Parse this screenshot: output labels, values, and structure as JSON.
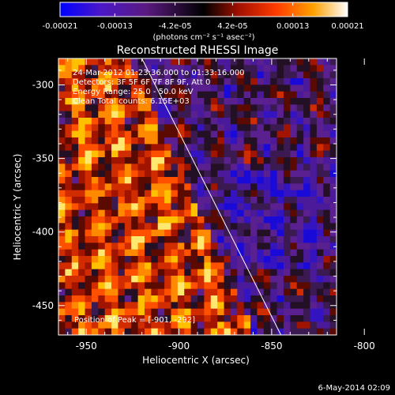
{
  "colorbar": {
    "ticks": [
      "-0.00021",
      "-0.00013",
      "-4.2e-05",
      "4.2e-05",
      "0.00013",
      "0.00021"
    ],
    "tick_values": [
      -0.00021,
      -0.00013,
      -4.2e-05,
      4.2e-05,
      0.00013,
      0.00021
    ],
    "range": [
      -0.00021,
      0.00021
    ],
    "unit_label": "(photons cm⁻² s⁻¹ asec⁻²)",
    "colors": [
      "#0000ff",
      "#6a2aa0",
      "#3a1040",
      "#000000",
      "#b01a00",
      "#ff5a00",
      "#ffb000",
      "#ffffff"
    ]
  },
  "chart_data": {
    "type": "heatmap",
    "title": "Reconstructed RHESSI Image",
    "xlabel": "Heliocentric X (arcsec)",
    "ylabel": "Heliocentric Y (arcsec)",
    "xlim": [
      -965,
      -815
    ],
    "ylim": [
      -470,
      -282
    ],
    "x_ticks": [
      -950,
      -900,
      -850,
      -800
    ],
    "y_ticks": [
      -300,
      -350,
      -400,
      -450
    ],
    "annotations": [
      "24-Mar-2012 01:23:36.000 to 01:33:16.000",
      "Detectors: 3F 5F 6F 7F 8F 9F, Att 0",
      "Energy Range: 25.0 - 50.0 keV",
      "Clean    Total counts: 6.15E+03"
    ],
    "peak_label": "Position of Peak = [-901, -292]",
    "limb_line": {
      "x": [
        -920,
        -845
      ],
      "y": [
        -282,
        -470
      ]
    },
    "peak_position": [
      -901,
      -292
    ]
  },
  "footer": {
    "date": "6-May-2014 02:09"
  }
}
